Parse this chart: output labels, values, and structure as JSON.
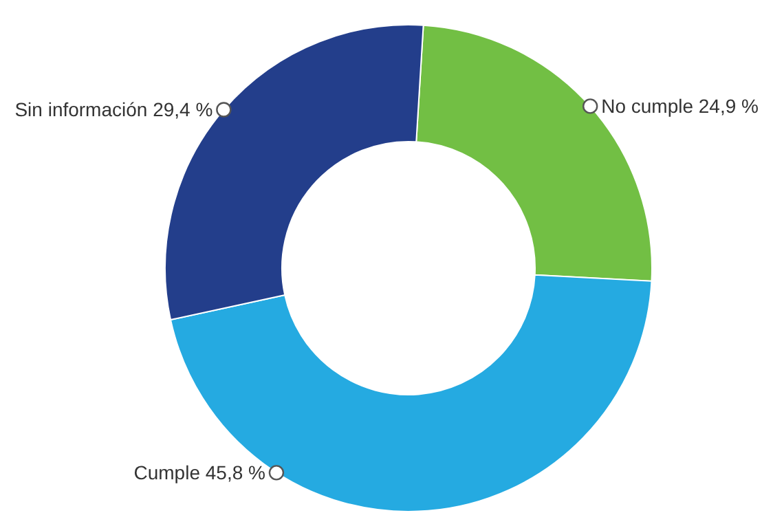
{
  "chart_data": {
    "type": "donut",
    "categories": [
      "No cumple",
      "Cumple",
      "Sin información"
    ],
    "values": [
      24.9,
      45.8,
      29.4
    ],
    "value_labels": [
      "24,9 %",
      "45,8 %",
      "29,4 %"
    ],
    "colors": [
      "#72bf44",
      "#25aae1",
      "#233e8b"
    ],
    "legend": false
  }
}
